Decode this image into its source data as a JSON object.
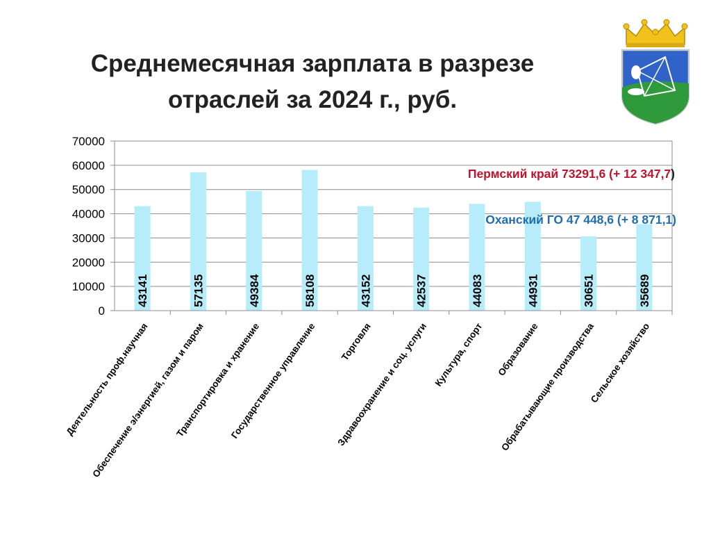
{
  "chart_data": {
    "type": "bar",
    "title_lines": [
      "Среднемесячная зарплата в разрезе",
      "отраслей за 2024 г., руб."
    ],
    "categories": [
      "Деятельность проф.научная",
      "Обеспечение э/энергией, газом и паром",
      "Транспортировка и хранение",
      "Государственное управление",
      "Торговля",
      "Здравоохранение и соц. услуги",
      "Культура, спорт",
      "Образование",
      "Обрабатывающие производства",
      "Сельское хозяйство"
    ],
    "values": [
      43141,
      57135,
      49384,
      58108,
      43152,
      42537,
      44083,
      44931,
      30651,
      35689
    ],
    "data_labels": [
      "43141",
      "57135",
      "49384",
      "58108",
      "43152",
      "42537",
      "44083",
      "44931",
      "30651",
      "35689"
    ],
    "ylim": [
      0,
      70000
    ],
    "yticks": [
      "0",
      "10000",
      "20000",
      "30000",
      "40000",
      "50000",
      "60000",
      "70000"
    ],
    "grid": true,
    "bar_color": "#b7ecfa",
    "annotations": [
      {
        "text": "Пермский край 73291,6 (+ 12 347,7",
        "suffix": ")",
        "color": "#c0142c"
      },
      {
        "text": "Оханский ГО 47 448,6 (+ 8 871,1)",
        "color": "#1f6cb0"
      }
    ]
  },
  "emblem": {
    "icon": "coat-of-arms-icon"
  }
}
